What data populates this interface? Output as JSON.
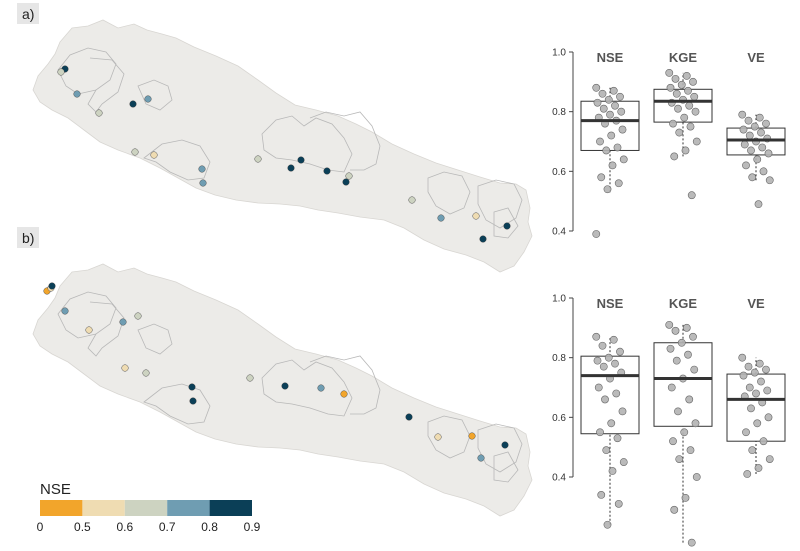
{
  "panels": [
    {
      "label": "a)"
    },
    {
      "label": "b)"
    }
  ],
  "legend": {
    "title": "NSE",
    "ticks": [
      "0",
      "0.5",
      "0.6",
      "0.7",
      "0.8",
      "0.9"
    ],
    "colors": [
      "#f2a52b",
      "#efdcb2",
      "#cdd3c1",
      "#6f9db2",
      "#0b3f57"
    ]
  },
  "colors": {
    "map_fill": "#ecebe8",
    "catchment_line": "#b8b8b8",
    "box_point": "#b3b3b3"
  },
  "chart_data": [
    {
      "type": "map",
      "panel": "a)",
      "stations_nse_class": [
        "0.8-0.9",
        "0.6-0.7",
        "0.7-0.8",
        "0.6-0.7",
        "0.8-0.9",
        "0.7-0.8",
        "0.6-0.7",
        "0.5-0.6",
        "0.7-0.8",
        "0.7-0.8",
        "0.6-0.7",
        "0.8-0.9",
        "0.8-0.9",
        "0.8-0.9",
        "0.6-0.7",
        "0.8-0.9",
        "0.6-0.7",
        "0.7-0.8",
        "0.5-0.6",
        "0.8-0.9",
        "0.8-0.9"
      ]
    },
    {
      "type": "box",
      "panel": "a)",
      "ylim": [
        0.4,
        1.0
      ],
      "yticks": [
        "0.4",
        "0.6",
        "0.8",
        "1.0"
      ],
      "series": [
        {
          "name": "NSE",
          "q1": 0.67,
          "median": 0.77,
          "q3": 0.835,
          "whisker_low": 0.53,
          "whisker_high": 0.88,
          "points": [
            0.88,
            0.87,
            0.86,
            0.85,
            0.84,
            0.83,
            0.82,
            0.81,
            0.8,
            0.79,
            0.78,
            0.77,
            0.76,
            0.74,
            0.72,
            0.7,
            0.68,
            0.67,
            0.64,
            0.62,
            0.58,
            0.56,
            0.54,
            0.39
          ]
        },
        {
          "name": "KGE",
          "q1": 0.765,
          "median": 0.835,
          "q3": 0.875,
          "whisker_low": 0.65,
          "whisker_high": 0.93,
          "points": [
            0.93,
            0.92,
            0.91,
            0.9,
            0.89,
            0.88,
            0.87,
            0.86,
            0.85,
            0.84,
            0.83,
            0.82,
            0.81,
            0.8,
            0.78,
            0.76,
            0.75,
            0.73,
            0.7,
            0.67,
            0.65,
            0.52
          ]
        },
        {
          "name": "VE",
          "q1": 0.655,
          "median": 0.705,
          "q3": 0.745,
          "whisker_low": 0.57,
          "whisker_high": 0.79,
          "points": [
            0.79,
            0.78,
            0.77,
            0.76,
            0.75,
            0.74,
            0.73,
            0.72,
            0.71,
            0.7,
            0.69,
            0.68,
            0.67,
            0.66,
            0.64,
            0.62,
            0.6,
            0.58,
            0.57,
            0.49
          ]
        }
      ]
    },
    {
      "type": "map",
      "panel": "b)",
      "stations_nse_class": [
        "0-0.5",
        "0.5-0.6",
        "0.8-0.9",
        "0.7-0.8",
        "0.5-0.6",
        "0.7-0.8",
        "0.6-0.7",
        "0.5-0.6",
        "0.6-0.7",
        "0.8-0.9",
        "0.8-0.9",
        "0.6-0.7",
        "0.8-0.9",
        "0.7-0.8",
        "0-0.5",
        "0.8-0.9",
        "0.5-0.6",
        "0-0.5",
        "0.7-0.8",
        "0.8-0.9"
      ]
    },
    {
      "type": "box",
      "panel": "b)",
      "ylim": [
        0.4,
        1.0
      ],
      "yticks": [
        "0.4",
        "0.6",
        "0.8",
        "1.0"
      ],
      "series": [
        {
          "name": "NSE",
          "q1": 0.545,
          "median": 0.74,
          "q3": 0.805,
          "whisker_low": 0.24,
          "whisker_high": 0.87,
          "points": [
            0.87,
            0.86,
            0.84,
            0.82,
            0.8,
            0.79,
            0.78,
            0.77,
            0.75,
            0.73,
            0.7,
            0.68,
            0.66,
            0.62,
            0.58,
            0.55,
            0.53,
            0.49,
            0.45,
            0.42,
            0.34,
            0.31,
            0.24
          ]
        },
        {
          "name": "KGE",
          "q1": 0.57,
          "median": 0.73,
          "q3": 0.85,
          "whisker_low": 0.18,
          "whisker_high": 0.91,
          "points": [
            0.91,
            0.9,
            0.89,
            0.87,
            0.85,
            0.83,
            0.81,
            0.79,
            0.76,
            0.73,
            0.7,
            0.66,
            0.62,
            0.58,
            0.55,
            0.52,
            0.49,
            0.46,
            0.4,
            0.33,
            0.29,
            0.18
          ]
        },
        {
          "name": "VE",
          "q1": 0.52,
          "median": 0.66,
          "q3": 0.745,
          "whisker_low": 0.41,
          "whisker_high": 0.8,
          "points": [
            0.8,
            0.78,
            0.77,
            0.76,
            0.75,
            0.74,
            0.72,
            0.7,
            0.69,
            0.68,
            0.67,
            0.65,
            0.63,
            0.6,
            0.58,
            0.55,
            0.52,
            0.49,
            0.46,
            0.43,
            0.41
          ]
        }
      ]
    }
  ]
}
